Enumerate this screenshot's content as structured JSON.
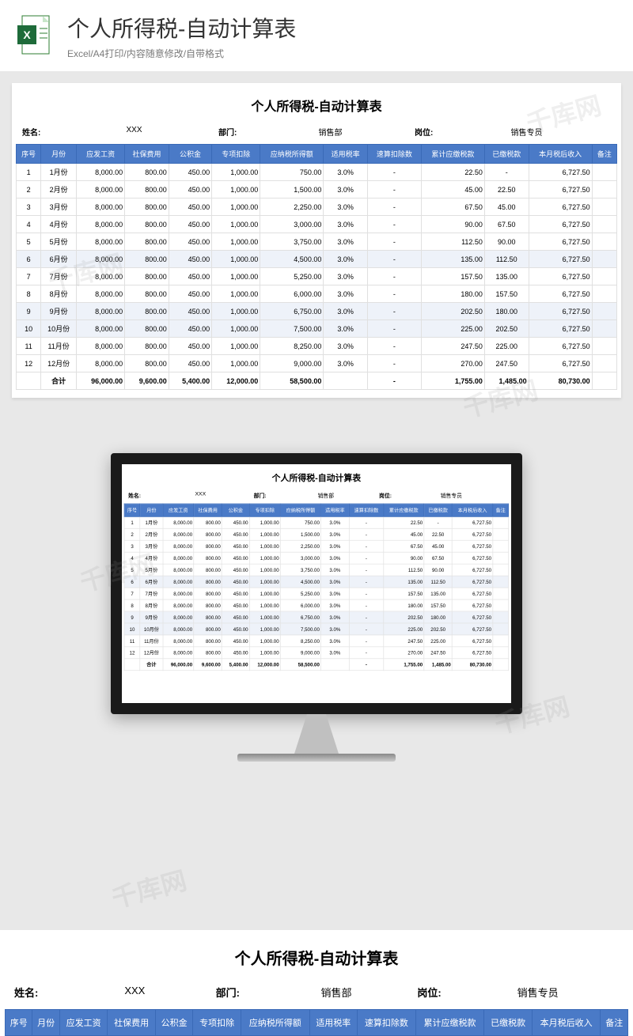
{
  "header": {
    "title": "个人所得税-自动计算表",
    "subtitle": "Excel/A4打印/内容随意修改/自带格式"
  },
  "sheet": {
    "title": "个人所得税-自动计算表",
    "info": {
      "name_label": "姓名:",
      "name_value": "XXX",
      "dept_label": "部门:",
      "dept_value": "销售部",
      "post_label": "岗位:",
      "post_value": "销售专员"
    },
    "columns": [
      "序号",
      "月份",
      "应发工资",
      "社保费用",
      "公积金",
      "专项扣除",
      "应纳税所得额",
      "适用税率",
      "速算扣除数",
      "累计应缴税款",
      "已缴税款",
      "本月税后收入",
      "备注"
    ],
    "rows": [
      {
        "num": "1",
        "month": "1月份",
        "salary": "8,000.00",
        "social": "800.00",
        "fund": "450.00",
        "special": "1,000.00",
        "taxable": "750.00",
        "rate": "3.0%",
        "deduct": "-",
        "cumtax": "22.50",
        "paid": "-",
        "net": "6,727.50",
        "note": ""
      },
      {
        "num": "2",
        "month": "2月份",
        "salary": "8,000.00",
        "social": "800.00",
        "fund": "450.00",
        "special": "1,000.00",
        "taxable": "1,500.00",
        "rate": "3.0%",
        "deduct": "-",
        "cumtax": "45.00",
        "paid": "22.50",
        "net": "6,727.50",
        "note": ""
      },
      {
        "num": "3",
        "month": "3月份",
        "salary": "8,000.00",
        "social": "800.00",
        "fund": "450.00",
        "special": "1,000.00",
        "taxable": "2,250.00",
        "rate": "3.0%",
        "deduct": "-",
        "cumtax": "67.50",
        "paid": "45.00",
        "net": "6,727.50",
        "note": ""
      },
      {
        "num": "4",
        "month": "4月份",
        "salary": "8,000.00",
        "social": "800.00",
        "fund": "450.00",
        "special": "1,000.00",
        "taxable": "3,000.00",
        "rate": "3.0%",
        "deduct": "-",
        "cumtax": "90.00",
        "paid": "67.50",
        "net": "6,727.50",
        "note": ""
      },
      {
        "num": "5",
        "month": "5月份",
        "salary": "8,000.00",
        "social": "800.00",
        "fund": "450.00",
        "special": "1,000.00",
        "taxable": "3,750.00",
        "rate": "3.0%",
        "deduct": "-",
        "cumtax": "112.50",
        "paid": "90.00",
        "net": "6,727.50",
        "note": ""
      },
      {
        "num": "6",
        "month": "6月份",
        "salary": "8,000.00",
        "social": "800.00",
        "fund": "450.00",
        "special": "1,000.00",
        "taxable": "4,500.00",
        "rate": "3.0%",
        "deduct": "-",
        "cumtax": "135.00",
        "paid": "112.50",
        "net": "6,727.50",
        "note": ""
      },
      {
        "num": "7",
        "month": "7月份",
        "salary": "8,000.00",
        "social": "800.00",
        "fund": "450.00",
        "special": "1,000.00",
        "taxable": "5,250.00",
        "rate": "3.0%",
        "deduct": "-",
        "cumtax": "157.50",
        "paid": "135.00",
        "net": "6,727.50",
        "note": ""
      },
      {
        "num": "8",
        "month": "8月份",
        "salary": "8,000.00",
        "social": "800.00",
        "fund": "450.00",
        "special": "1,000.00",
        "taxable": "6,000.00",
        "rate": "3.0%",
        "deduct": "-",
        "cumtax": "180.00",
        "paid": "157.50",
        "net": "6,727.50",
        "note": ""
      },
      {
        "num": "9",
        "month": "9月份",
        "salary": "8,000.00",
        "social": "800.00",
        "fund": "450.00",
        "special": "1,000.00",
        "taxable": "6,750.00",
        "rate": "3.0%",
        "deduct": "-",
        "cumtax": "202.50",
        "paid": "180.00",
        "net": "6,727.50",
        "note": ""
      },
      {
        "num": "10",
        "month": "10月份",
        "salary": "8,000.00",
        "social": "800.00",
        "fund": "450.00",
        "special": "1,000.00",
        "taxable": "7,500.00",
        "rate": "3.0%",
        "deduct": "-",
        "cumtax": "225.00",
        "paid": "202.50",
        "net": "6,727.50",
        "note": ""
      },
      {
        "num": "11",
        "month": "11月份",
        "salary": "8,000.00",
        "social": "800.00",
        "fund": "450.00",
        "special": "1,000.00",
        "taxable": "8,250.00",
        "rate": "3.0%",
        "deduct": "-",
        "cumtax": "247.50",
        "paid": "225.00",
        "net": "6,727.50",
        "note": ""
      },
      {
        "num": "12",
        "month": "12月份",
        "salary": "8,000.00",
        "social": "800.00",
        "fund": "450.00",
        "special": "1,000.00",
        "taxable": "9,000.00",
        "rate": "3.0%",
        "deduct": "-",
        "cumtax": "270.00",
        "paid": "247.50",
        "net": "6,727.50",
        "note": ""
      }
    ],
    "total": {
      "label": "合计",
      "salary": "96,000.00",
      "social": "9,600.00",
      "fund": "5,400.00",
      "special": "12,000.00",
      "taxable": "58,500.00",
      "rate": "",
      "deduct": "-",
      "cumtax": "1,755.00",
      "paid": "1,485.00",
      "net": "80,730.00",
      "note": ""
    }
  },
  "watermark": "千库网",
  "colors": {
    "header_bg": "#4a7ac7",
    "header_text": "#ffffff",
    "highlight_bg": "#eef2f9",
    "border": "#e0e0e0",
    "page_bg": "#e8e8e8"
  }
}
